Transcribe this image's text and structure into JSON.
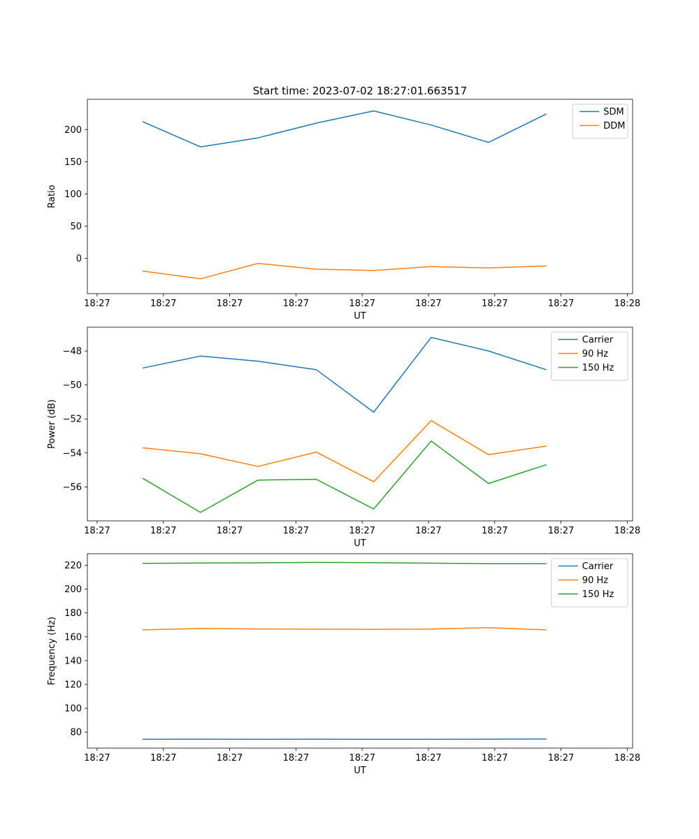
{
  "figure": {
    "title": "Start time: 2023-07-02 18:27:01.663517",
    "background": "#ffffff"
  },
  "colors": {
    "blue": "#1f77b4",
    "orange": "#ff7f0e",
    "green": "#2ca02c"
  },
  "chart_data": [
    {
      "type": "line",
      "title": "Start time: 2023-07-02 18:27:01.663517",
      "xlabel": "UT",
      "ylabel": "Ratio",
      "xlim": [
        -1.1,
        60.6
      ],
      "ylim": [
        -55,
        247
      ],
      "grid": false,
      "legend_position": "upper right",
      "x_units": "seconds after 18:27:00 UT",
      "x": [
        5.2,
        11.7,
        18.2,
        24.8,
        31.3,
        37.8,
        44.3,
        50.8
      ],
      "xtick_values": [
        0,
        7.5,
        15,
        22.5,
        30,
        37.5,
        45,
        52.5,
        60
      ],
      "xtick_labels": [
        "18:27",
        "18:27",
        "18:27",
        "18:27",
        "18:27",
        "18:27",
        "18:27",
        "18:27",
        "18:28"
      ],
      "ytick_values": [
        0,
        50,
        100,
        150,
        200
      ],
      "ytick_labels": [
        "0",
        "50",
        "100",
        "150",
        "200"
      ],
      "series": [
        {
          "name": "SDM",
          "color": "#1f77b4",
          "values": [
            212,
            173,
            187,
            210,
            229,
            207,
            180,
            224
          ]
        },
        {
          "name": "DDM",
          "color": "#ff7f0e",
          "values": [
            -20,
            -32,
            -8,
            -17,
            -19,
            -13,
            -15,
            -12
          ]
        }
      ]
    },
    {
      "type": "line",
      "title": "",
      "xlabel": "UT",
      "ylabel": "Power (dB)",
      "xlim": [
        -1.1,
        60.6
      ],
      "ylim": [
        -58.0,
        -46.6
      ],
      "grid": false,
      "legend_position": "upper right",
      "x_units": "seconds after 18:27:00 UT",
      "x": [
        5.2,
        11.7,
        18.2,
        24.8,
        31.3,
        37.8,
        44.3,
        50.8
      ],
      "xtick_values": [
        0,
        7.5,
        15,
        22.5,
        30,
        37.5,
        45,
        52.5,
        60
      ],
      "xtick_labels": [
        "18:27",
        "18:27",
        "18:27",
        "18:27",
        "18:27",
        "18:27",
        "18:27",
        "18:27",
        "18:28"
      ],
      "ytick_values": [
        -56,
        -54,
        -52,
        -50,
        -48
      ],
      "ytick_labels": [
        "−56",
        "−54",
        "−52",
        "−50",
        "−48"
      ],
      "series": [
        {
          "name": "Carrier",
          "color": "#1f77b4",
          "values": [
            -49.0,
            -48.3,
            -48.6,
            -49.1,
            -51.6,
            -47.2,
            -48.0,
            -49.1
          ]
        },
        {
          "name": "90 Hz",
          "color": "#ff7f0e",
          "values": [
            -53.7,
            -54.05,
            -54.8,
            -53.95,
            -55.7,
            -52.1,
            -54.1,
            -53.6
          ]
        },
        {
          "name": "150 Hz",
          "color": "#2ca02c",
          "values": [
            -55.5,
            -57.5,
            -55.6,
            -55.55,
            -57.3,
            -53.3,
            -55.8,
            -54.7
          ]
        }
      ]
    },
    {
      "type": "line",
      "title": "",
      "xlabel": "UT",
      "ylabel": "Frequency (Hz)",
      "xlim": [
        -1.1,
        60.6
      ],
      "ylim": [
        66.6,
        229.7
      ],
      "grid": false,
      "legend_position": "upper right",
      "x_units": "seconds after 18:27:00 UT",
      "x": [
        5.2,
        11.7,
        18.2,
        24.8,
        31.3,
        37.8,
        44.3,
        50.8
      ],
      "xtick_values": [
        0,
        7.5,
        15,
        22.5,
        30,
        37.5,
        45,
        52.5,
        60
      ],
      "xtick_labels": [
        "18:27",
        "18:27",
        "18:27",
        "18:27",
        "18:27",
        "18:27",
        "18:27",
        "18:27",
        "18:28"
      ],
      "ytick_values": [
        80,
        100,
        120,
        140,
        160,
        180,
        200,
        220
      ],
      "ytick_labels": [
        "80",
        "100",
        "120",
        "140",
        "160",
        "180",
        "200",
        "220"
      ],
      "series": [
        {
          "name": "Carrier",
          "color": "#1f77b4",
          "values": [
            74.0,
            74.1,
            74.0,
            74.1,
            74.0,
            74.0,
            74.1,
            74.2
          ]
        },
        {
          "name": "90 Hz",
          "color": "#ff7f0e",
          "values": [
            165.8,
            167.0,
            166.6,
            166.4,
            166.3,
            166.5,
            167.6,
            165.8
          ]
        },
        {
          "name": "150 Hz",
          "color": "#2ca02c",
          "values": [
            221.6,
            221.9,
            222.1,
            222.4,
            222.2,
            221.8,
            221.3,
            221.3
          ]
        }
      ]
    }
  ]
}
